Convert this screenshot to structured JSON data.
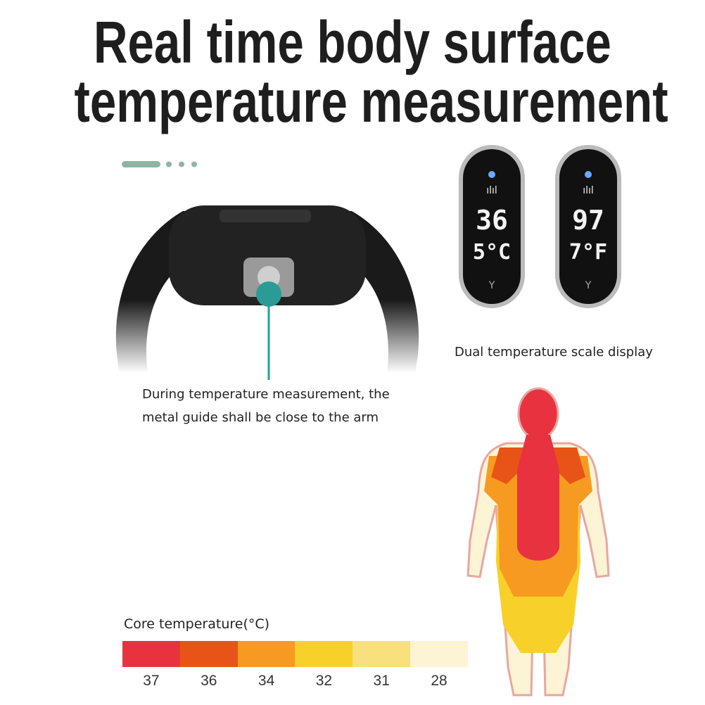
{
  "headline": {
    "line1": "Real time body surface",
    "line2": "temperature measurement"
  },
  "device_displays": [
    {
      "line1": "36",
      "line2": "5°C",
      "unit": "C"
    },
    {
      "line1": "97",
      "line2": "7°F",
      "unit": "F"
    }
  ],
  "captions": {
    "dual_scale": "Dual temperature scale display",
    "guide_line1": "During temperature measurement, the",
    "guide_line2": "metal guide shall be close to the arm"
  },
  "legend": {
    "title": "Core temperature(°C)",
    "steps": [
      {
        "label": "37",
        "color": "#e8323f"
      },
      {
        "label": "36",
        "color": "#e85417"
      },
      {
        "label": "34",
        "color": "#f79a21"
      },
      {
        "label": "32",
        "color": "#f7d12a"
      },
      {
        "label": "31",
        "color": "#f8e07e"
      },
      {
        "label": "28",
        "color": "#fdf4d5"
      }
    ]
  },
  "colors": {
    "accent_teal": "#2a9c95",
    "pager_green": "#8fb5a2"
  }
}
